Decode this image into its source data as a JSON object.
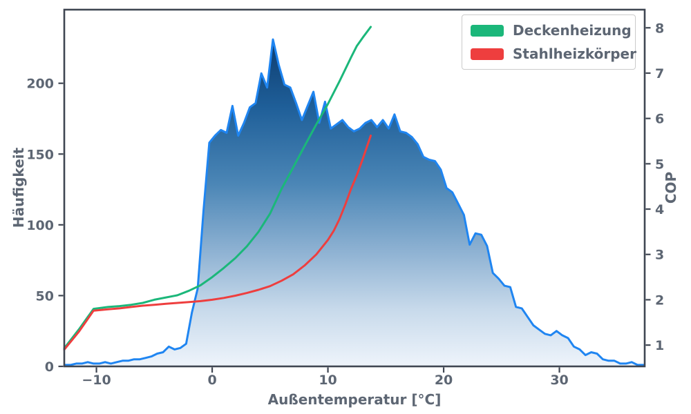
{
  "chart_data": {
    "type": "area",
    "title": "",
    "xlabel": "Außentemperatur [°C]",
    "ylabel_left": "Häufigkeit",
    "ylabel_right": "COP",
    "xlim": [
      -12.78,
      37.37
    ],
    "ylim_left": [
      0,
      252
    ],
    "ylim_right": [
      0.53,
      8.4
    ],
    "grid": "off",
    "legend_position": "upper right",
    "xticks": {
      "values": [
        -10,
        0,
        10,
        20,
        30
      ],
      "labels": [
        "−10",
        "0",
        "10",
        "20",
        "30"
      ]
    },
    "yticks_left": {
      "values": [
        0,
        50,
        100,
        150,
        200
      ],
      "labels": [
        "0",
        "50",
        "100",
        "150",
        "200"
      ]
    },
    "yticks_right": {
      "values": [
        1,
        2,
        3,
        4,
        5,
        6,
        7,
        8
      ],
      "labels": [
        "1",
        "2",
        "3",
        "4",
        "5",
        "6",
        "7",
        "8"
      ]
    },
    "histogram": {
      "name": "Häufigkeit",
      "axis": "left",
      "line_color": "#1f85f1",
      "points": [
        [
          -12.75,
          1
        ],
        [
          -12.25,
          1
        ],
        [
          -11.75,
          2
        ],
        [
          -11.25,
          2
        ],
        [
          -10.75,
          3
        ],
        [
          -10.25,
          2
        ],
        [
          -9.75,
          2
        ],
        [
          -9.25,
          3
        ],
        [
          -8.75,
          2
        ],
        [
          -8.25,
          3
        ],
        [
          -7.75,
          4
        ],
        [
          -7.25,
          4
        ],
        [
          -6.75,
          5
        ],
        [
          -6.25,
          5
        ],
        [
          -5.75,
          6
        ],
        [
          -5.25,
          7
        ],
        [
          -4.75,
          9
        ],
        [
          -4.25,
          10
        ],
        [
          -3.75,
          14
        ],
        [
          -3.25,
          12
        ],
        [
          -2.75,
          13
        ],
        [
          -2.25,
          16
        ],
        [
          -1.75,
          38
        ],
        [
          -1.25,
          55
        ],
        [
          -0.75,
          110
        ],
        [
          -0.25,
          158
        ],
        [
          0.25,
          163
        ],
        [
          0.75,
          167
        ],
        [
          1.25,
          165
        ],
        [
          1.75,
          184
        ],
        [
          2.25,
          163
        ],
        [
          2.75,
          172
        ],
        [
          3.25,
          183
        ],
        [
          3.75,
          186
        ],
        [
          4.25,
          207
        ],
        [
          4.75,
          197
        ],
        [
          5.25,
          231
        ],
        [
          5.75,
          213
        ],
        [
          6.25,
          199
        ],
        [
          6.75,
          197
        ],
        [
          7.25,
          186
        ],
        [
          7.75,
          174
        ],
        [
          8.25,
          184
        ],
        [
          8.75,
          194
        ],
        [
          9.25,
          172
        ],
        [
          9.75,
          187
        ],
        [
          10.25,
          168
        ],
        [
          10.75,
          171
        ],
        [
          11.25,
          174
        ],
        [
          11.75,
          169
        ],
        [
          12.25,
          166
        ],
        [
          12.75,
          168
        ],
        [
          13.25,
          172
        ],
        [
          13.75,
          174
        ],
        [
          14.25,
          169
        ],
        [
          14.75,
          174
        ],
        [
          15.25,
          168
        ],
        [
          15.75,
          178
        ],
        [
          16.25,
          166
        ],
        [
          16.75,
          165
        ],
        [
          17.25,
          162
        ],
        [
          17.75,
          157
        ],
        [
          18.25,
          148
        ],
        [
          18.75,
          146
        ],
        [
          19.25,
          145
        ],
        [
          19.75,
          139
        ],
        [
          20.25,
          126
        ],
        [
          20.75,
          123
        ],
        [
          21.25,
          115
        ],
        [
          21.75,
          107
        ],
        [
          22.25,
          86
        ],
        [
          22.75,
          94
        ],
        [
          23.25,
          93
        ],
        [
          23.75,
          85
        ],
        [
          24.25,
          66
        ],
        [
          24.75,
          62
        ],
        [
          25.25,
          57
        ],
        [
          25.75,
          56
        ],
        [
          26.25,
          42
        ],
        [
          26.75,
          41
        ],
        [
          27.25,
          35
        ],
        [
          27.75,
          29
        ],
        [
          28.25,
          26
        ],
        [
          28.75,
          23
        ],
        [
          29.25,
          22
        ],
        [
          29.75,
          25
        ],
        [
          30.25,
          22
        ],
        [
          30.75,
          20
        ],
        [
          31.25,
          14
        ],
        [
          31.75,
          12
        ],
        [
          32.25,
          8
        ],
        [
          32.75,
          10
        ],
        [
          33.25,
          9
        ],
        [
          33.75,
          5
        ],
        [
          34.25,
          4
        ],
        [
          34.75,
          4
        ],
        [
          35.25,
          2
        ],
        [
          35.75,
          2
        ],
        [
          36.25,
          3
        ],
        [
          36.75,
          1
        ],
        [
          37.25,
          1
        ]
      ]
    },
    "series": [
      {
        "name": "Deckenheizung",
        "axis": "right",
        "color": "#1bb77a",
        "points": [
          [
            -12.78,
            0.93
          ],
          [
            -11.5,
            1.35
          ],
          [
            -10.25,
            1.8
          ],
          [
            -9,
            1.84
          ],
          [
            -8,
            1.86
          ],
          [
            -7,
            1.89
          ],
          [
            -6,
            1.93
          ],
          [
            -5,
            2.0
          ],
          [
            -4,
            2.05
          ],
          [
            -3,
            2.1
          ],
          [
            -2,
            2.2
          ],
          [
            -1,
            2.32
          ],
          [
            0,
            2.5
          ],
          [
            1,
            2.7
          ],
          [
            2,
            2.92
          ],
          [
            3,
            3.18
          ],
          [
            4,
            3.5
          ],
          [
            5,
            3.9
          ],
          [
            6,
            4.45
          ],
          [
            7,
            4.92
          ],
          [
            8,
            5.4
          ],
          [
            9,
            5.87
          ],
          [
            10,
            6.32
          ],
          [
            11,
            6.82
          ],
          [
            12,
            7.35
          ],
          [
            12.5,
            7.6
          ],
          [
            13,
            7.78
          ],
          [
            13.7,
            8.02
          ]
        ]
      },
      {
        "name": "Stahlheizkörper",
        "axis": "right",
        "color": "#ee3e3e",
        "points": [
          [
            -12.78,
            0.9
          ],
          [
            -11.5,
            1.3
          ],
          [
            -10.25,
            1.76
          ],
          [
            -9,
            1.79
          ],
          [
            -8,
            1.81
          ],
          [
            -7,
            1.84
          ],
          [
            -6,
            1.87
          ],
          [
            -5,
            1.89
          ],
          [
            -4,
            1.91
          ],
          [
            -3,
            1.93
          ],
          [
            -2,
            1.95
          ],
          [
            -1,
            1.97
          ],
          [
            0,
            2.0
          ],
          [
            1,
            2.04
          ],
          [
            2,
            2.09
          ],
          [
            3,
            2.15
          ],
          [
            4,
            2.22
          ],
          [
            5,
            2.3
          ],
          [
            6,
            2.42
          ],
          [
            7,
            2.56
          ],
          [
            8,
            2.76
          ],
          [
            9,
            3.0
          ],
          [
            10,
            3.32
          ],
          [
            10.5,
            3.52
          ],
          [
            11,
            3.78
          ],
          [
            11.5,
            4.1
          ],
          [
            12,
            4.45
          ],
          [
            12.5,
            4.75
          ],
          [
            13,
            5.1
          ],
          [
            13.7,
            5.62
          ]
        ]
      }
    ],
    "colors": {
      "spine": "#3f4652",
      "tick_label": "#5d6673",
      "legend_border": "#cbcbcb",
      "gradient_stops": [
        [
          "0%",
          "#0c3a6c"
        ],
        [
          "22%",
          "#1f5f99"
        ],
        [
          "45%",
          "#4b86b6"
        ],
        [
          "65%",
          "#8db1d2"
        ],
        [
          "83%",
          "#c8daeb"
        ],
        [
          "100%",
          "#eef4fb"
        ]
      ]
    }
  }
}
